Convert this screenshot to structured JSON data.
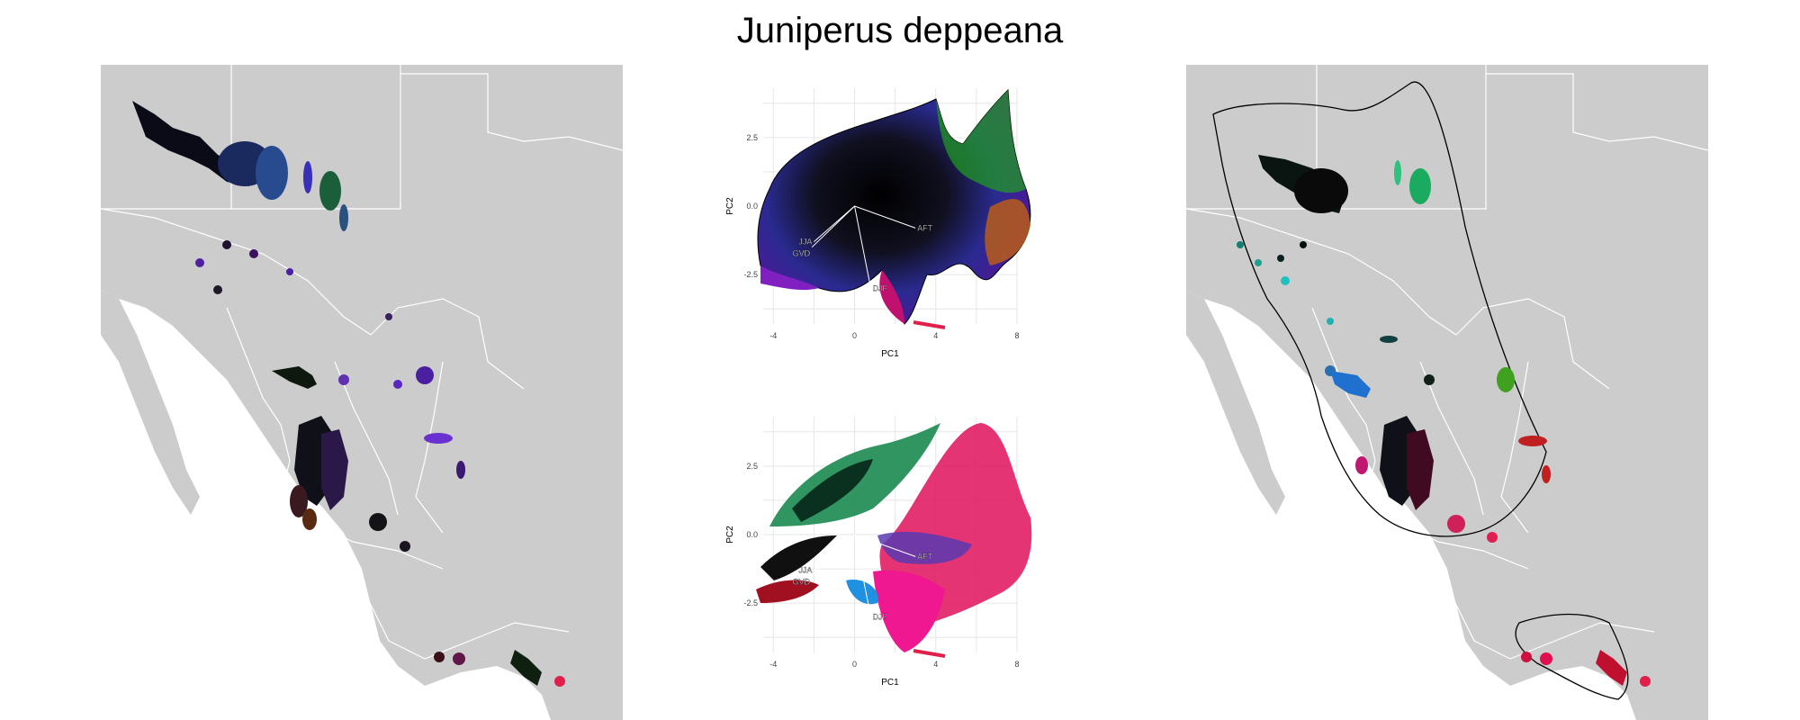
{
  "title": "Juniperus deppeana",
  "colors": {
    "map_background": "#cccccc",
    "border": "#ffffff",
    "hull": "#000000",
    "grid": "#e6e6e6"
  },
  "chart_data": [
    {
      "type": "scatter",
      "panel": "pca-top",
      "title": "",
      "xlabel": "PC1",
      "ylabel": "PC2",
      "xlim": [
        -4.5,
        8
      ],
      "ylim": [
        -4.3,
        4.3
      ],
      "x_ticks": [
        "-4",
        "0",
        "4",
        "8"
      ],
      "y_ticks": [
        "2.5",
        "0.0",
        "-2.5"
      ],
      "grid": true,
      "loadings": [
        {
          "label": "AFT",
          "x": 3.0,
          "y": -0.8
        },
        {
          "label": "DJF",
          "x": 0.8,
          "y": -3.0
        },
        {
          "label": "JJA",
          "x": -2.0,
          "y": -1.3
        },
        {
          "label": "GVD",
          "x": -2.1,
          "y": -1.5
        }
      ],
      "coloring": "continuous color by position in PC space"
    },
    {
      "type": "scatter",
      "panel": "pca-bottom",
      "title": "",
      "xlabel": "PC1",
      "ylabel": "PC2",
      "xlim": [
        -4.5,
        8
      ],
      "ylim": [
        -4.3,
        4.3
      ],
      "x_ticks": [
        "-4",
        "0",
        "4",
        "8"
      ],
      "y_ticks": [
        "2.5",
        "0.0",
        "-2.5"
      ],
      "grid": true,
      "loadings": [
        {
          "label": "AFT",
          "x": 3.0,
          "y": -0.8
        },
        {
          "label": "DJF",
          "x": 0.8,
          "y": -3.0
        },
        {
          "label": "JJA",
          "x": -2.0,
          "y": -1.3
        },
        {
          "label": "GVD",
          "x": -2.1,
          "y": -1.5
        }
      ],
      "coloring": "color by cluster"
    }
  ],
  "maps": {
    "left": {
      "name": "continuous-color-map"
    },
    "right": {
      "name": "cluster-hull-map"
    }
  }
}
